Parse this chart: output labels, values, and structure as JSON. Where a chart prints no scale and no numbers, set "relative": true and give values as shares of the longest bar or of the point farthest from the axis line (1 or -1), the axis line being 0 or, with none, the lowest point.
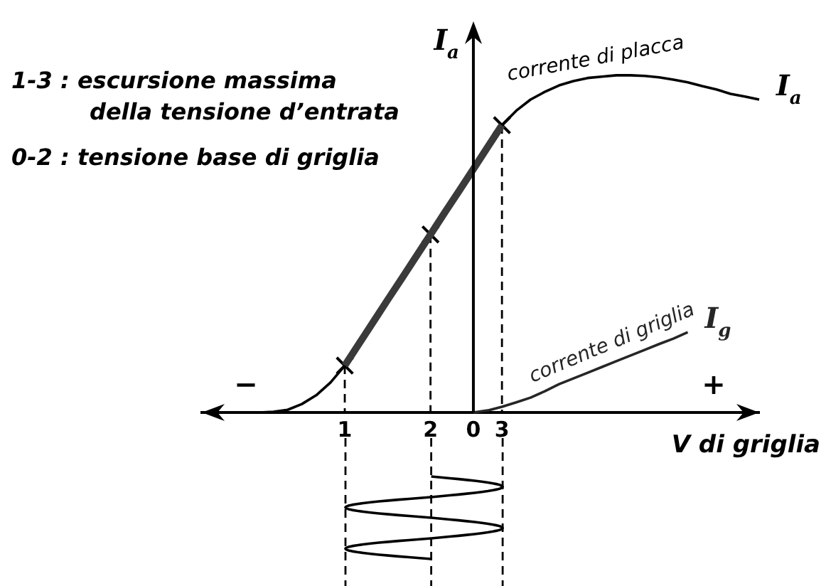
{
  "chart_data": {
    "type": "line",
    "relative": true,
    "xlabel": "V di griglia",
    "ylabel": "I$_{a}$",
    "categories": [
      null,
      null,
      null,
      null,
      null,
      null,
      null,
      null,
      null,
      null,
      "1",
      null,
      null,
      null,
      null,
      null,
      "2",
      null,
      null,
      "0",
      null,
      "3",
      null,
      null,
      null,
      null,
      null,
      null,
      null,
      null,
      null,
      null,
      null,
      null,
      null,
      null,
      null,
      null,
      null,
      null
    ],
    "series": [
      {
        "name": "corrente di placca",
        "color": "#000000",
        "values": [
          null,
          null,
          null,
          null,
          0,
          0.002,
          0.008,
          0.025,
          0.051,
          0.089,
          0.139,
          null,
          null,
          null,
          null,
          null,
          null,
          null,
          null,
          null,
          null,
          0.852,
          0.895,
          0.928,
          0.951,
          0.97,
          0.983,
          0.992,
          0.996,
          1,
          1,
          0.998,
          0.994,
          0.987,
          0.979,
          0.968,
          0.958,
          0.945,
          0.937,
          0.928
        ]
      },
      {
        "color": "#3a3a3a",
        "values": [
          null,
          null,
          null,
          null,
          null,
          null,
          null,
          null,
          null,
          null,
          0.139,
          0.204,
          0.269,
          0.334,
          0.398,
          0.463,
          0.528,
          0.593,
          0.657,
          0.722,
          0.787,
          0.852,
          null,
          null,
          null,
          null,
          null,
          null,
          null,
          null,
          null,
          null,
          null,
          null,
          null,
          null,
          null,
          null,
          null,
          null
        ]
      },
      {
        "type": "scatter",
        "marker": "cross",
        "color": "#000000",
        "values": [
          null,
          null,
          null,
          null,
          null,
          null,
          null,
          null,
          null,
          null,
          0.139,
          null,
          null,
          null,
          null,
          null,
          0.528,
          null,
          null,
          null,
          null,
          0.852,
          null,
          null,
          null,
          null,
          null,
          null,
          null,
          null,
          null,
          null,
          null,
          null,
          null,
          null,
          null,
          null,
          null,
          null
        ]
      },
      {
        "name": "corrente di griglia",
        "color": "#262626",
        "values": [
          null,
          null,
          null,
          null,
          null,
          null,
          null,
          null,
          null,
          null,
          null,
          null,
          null,
          null,
          null,
          null,
          null,
          null,
          null,
          0,
          0.006,
          0.017,
          0.03,
          0.044,
          0.063,
          0.084,
          0.101,
          0.118,
          0.135,
          0.152,
          0.169,
          0.186,
          0.203,
          0.219,
          0.238,
          null,
          null,
          null,
          null,
          null
        ]
      },
      {
        "color": "#000000",
        "line_style": "dashed",
        "x": [
          "1",
          "1"
        ],
        "values": [
          0.139,
          0
        ]
      },
      {
        "color": "#000000",
        "line_style": "dashed",
        "x": [
          "2",
          "2"
        ],
        "values": [
          0.528,
          0
        ]
      },
      {
        "color": "#000000",
        "line_style": "dashed",
        "x": [
          "3",
          "3"
        ],
        "values": [
          0.852,
          0
        ]
      }
    ],
    "ref_lines": [
      {
        "axis": "x",
        "value": "0",
        "color": "#000000"
      }
    ],
    "annotations": [
      "1-3 : escursione massima della tensione d’entrata",
      "0-2 : tensione base di griglia",
      "I$_{a}$",
      "I$_{g}$",
      "−",
      "+"
    ]
  }
}
